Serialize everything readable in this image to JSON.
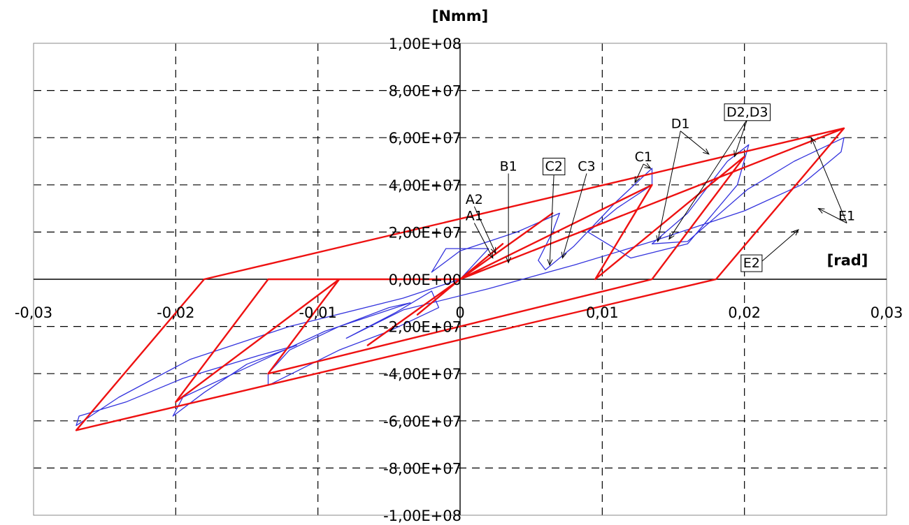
{
  "chart_data": {
    "type": "line",
    "title": "",
    "xlabel": "[rad]",
    "ylabel": "[Nmm]",
    "xlim": [
      -0.03,
      0.03
    ],
    "ylim": [
      -100000000,
      100000000
    ],
    "x_ticks": [
      -0.03,
      -0.02,
      -0.01,
      0,
      0.01,
      0.02,
      0.03
    ],
    "x_tick_labels": [
      "-0,03",
      "-0,02",
      "-0,01",
      "0",
      "0,01",
      "0,02",
      "0,03"
    ],
    "y_ticks": [
      -100000000,
      -80000000,
      -60000000,
      -40000000,
      -20000000,
      0,
      20000000,
      40000000,
      60000000,
      80000000,
      100000000
    ],
    "y_tick_labels": [
      "-1,00E+08",
      "-8,00E+07",
      "-6,00E+07",
      "-4,00E+07",
      "-2,00E+07",
      "0,00E+00",
      "2,00E+07",
      "4,00E+07",
      "6,00E+07",
      "8,00E+07",
      "1,00E+08"
    ],
    "grid": true,
    "grid_style": "dashed",
    "colors": {
      "experimental": "#3333dd",
      "model": "#ee1111",
      "axis": "#000000",
      "grid": "#000000"
    },
    "series": [
      {
        "x": [
          0,
          0.002,
          -0.001,
          -0.002,
          0,
          0.002,
          0.004,
          0.007,
          0.0065,
          0.0055,
          0.006,
          0.008,
          0.011,
          0.0135,
          0.0135,
          0.011,
          0.009,
          0.012,
          0.016,
          0.0195,
          0.0203,
          0.0188,
          0.016,
          0.0135,
          0.016,
          0.0202,
          0.0235,
          0.027,
          0.0268,
          0.024,
          0.02,
          0.0135,
          0.008,
          0.002,
          -0.004,
          -0.008,
          -0.0045,
          -0.002,
          -0.0015,
          -0.005,
          -0.0085,
          -0.0135,
          -0.0135,
          -0.012,
          -0.0085,
          -0.005,
          -0.0035,
          -0.0095,
          -0.0145,
          -0.0195,
          -0.0202,
          -0.018,
          -0.015,
          -0.0115,
          -0.014,
          -0.0195,
          -0.0235,
          -0.0268,
          -0.027,
          -0.024,
          -0.019,
          -0.012,
          -0.004,
          0
        ],
        "y": [
          0,
          13000000,
          13000000,
          3000000,
          12000000,
          16000000,
          20000000,
          28000000,
          20000000,
          8000000,
          4000000,
          14000000,
          33000000,
          47000000,
          40000000,
          30000000,
          20000000,
          9000000,
          15000000,
          40000000,
          57000000,
          50000000,
          28000000,
          15000000,
          16000000,
          38000000,
          50000000,
          60000000,
          54000000,
          40000000,
          29000000,
          16000000,
          6000000,
          -4000000,
          -13000000,
          -25000000,
          -14000000,
          -5000000,
          -12000000,
          -22000000,
          -30000000,
          -45000000,
          -40000000,
          -30000000,
          -20000000,
          -12000000,
          -10000000,
          -22000000,
          -36000000,
          -50000000,
          -58000000,
          -48000000,
          -36000000,
          -28000000,
          -32000000,
          -42000000,
          -52000000,
          -58000000,
          -62000000,
          -50000000,
          -34000000,
          -20000000,
          -8000000,
          0
        ]
      },
      {
        "x": [
          0,
          0.003,
          -0.003,
          0,
          0.0065,
          -0.0065,
          0,
          0.0135,
          0.0095,
          0.02,
          0.0135,
          -0.0135,
          -0.0085,
          -0.02,
          -0.0135,
          0,
          0.027,
          0.018,
          -0.027,
          -0.018,
          0.027
        ],
        "y": [
          0,
          15000000,
          -15000000,
          0,
          28000000,
          -28000000,
          0,
          40000000,
          0,
          52000000,
          0,
          -40000000,
          0,
          -52000000,
          0,
          0,
          64000000,
          0,
          -64000000,
          0,
          64000000
        ]
      }
    ],
    "annotations": [
      {
        "label": "A1"
      },
      {
        "label": "A2"
      },
      {
        "label": "B1"
      },
      {
        "label": "C2",
        "boxed": true
      },
      {
        "label": "C3"
      },
      {
        "label": "C1"
      },
      {
        "label": "D1"
      },
      {
        "label": "D2,D3",
        "boxed": true
      },
      {
        "label": "E1"
      },
      {
        "label": "E2",
        "boxed": true
      }
    ]
  }
}
